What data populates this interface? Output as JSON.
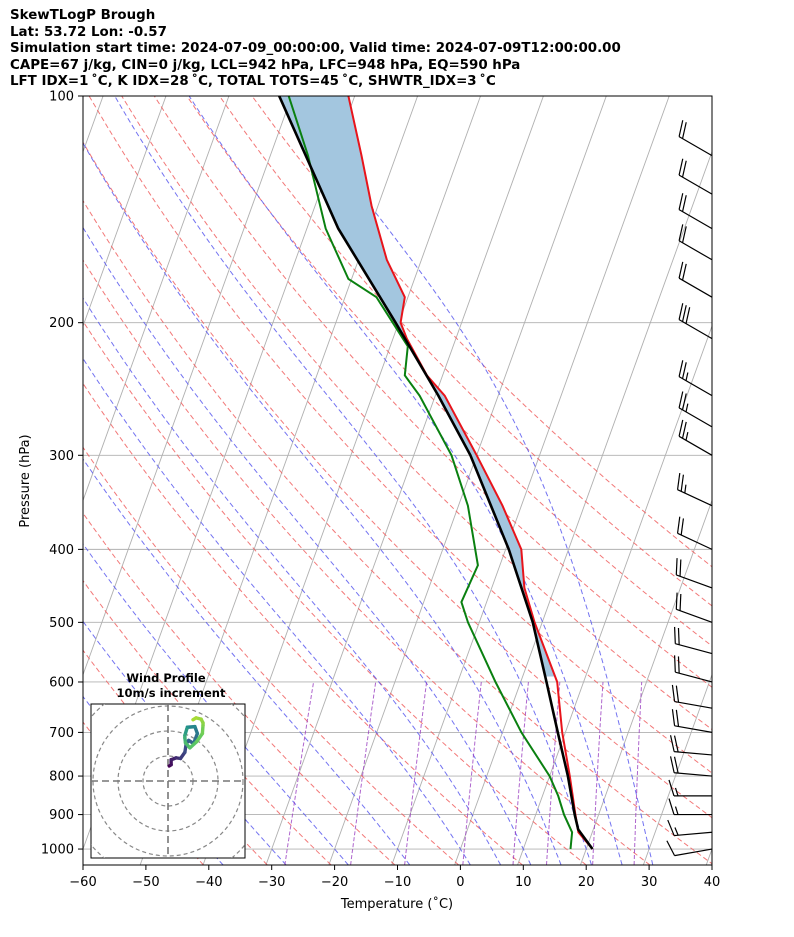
{
  "header": {
    "line1": "SkewTLogP Brough",
    "line2": "Lat: 53.72   Lon: -0.57",
    "line3": "Simulation start time: 2024-07-09_00:00:00, Valid time: 2024-07-09T12:00:00.00",
    "line4": "CAPE=67 j/kg, CIN=0 j/kg, LCL=942 hPa, LFC=948 hPa, EQ=590 hPa",
    "line5": "LFT IDX=1 ˚C, K IDX=28 ˚C, TOTAL TOTS=45 ˚C, SHWTR_IDX=3 ˚C"
  },
  "colors": {
    "temperature": "#e8141b",
    "dewpoint": "#0a8010",
    "parcel": "#000000",
    "cape_fill": "#a3c6df",
    "dry_adiabat": "#f06060",
    "moist_adiabat": "#5a5aee",
    "mixing_ratio": "#9a3fc0",
    "isotherm": "#b0b0b0"
  },
  "chart_data": [
    {
      "type": "line",
      "chart": "skew-t-log-p",
      "xlabel": "Temperature (˚C)",
      "ylabel": "Pressure (hPa)",
      "xlim": [
        -60,
        40
      ],
      "ylim": [
        1050,
        100
      ],
      "x_ticks": [
        -60,
        -50,
        -40,
        -30,
        -20,
        -10,
        0,
        10,
        20,
        30,
        40
      ],
      "x_tick_labels": [
        "−60",
        "−50",
        "−40",
        "−30",
        "−20",
        "−10",
        "0",
        "10",
        "20",
        "30",
        "40"
      ],
      "y_ticks": [
        1000,
        900,
        800,
        700,
        600,
        500,
        400,
        300,
        200,
        100
      ],
      "series": [
        {
          "name": "Temperature",
          "color": "#e8141b",
          "points": [
            [
              1000,
              21.0
            ],
            [
              950,
              17.8
            ],
            [
              900,
              16.3
            ],
            [
              850,
              14.8
            ],
            [
              800,
              13.2
            ],
            [
              700,
              9.5
            ],
            [
              600,
              5.8
            ],
            [
              500,
              -1.2
            ],
            [
              450,
              -4.8
            ],
            [
              400,
              -7.5
            ],
            [
              350,
              -13.0
            ],
            [
              300,
              -20.0
            ],
            [
              250,
              -28.5
            ],
            [
              235,
              -32.5
            ],
            [
              210,
              -37.8
            ],
            [
              200,
              -39.7
            ],
            [
              185,
              -40.5
            ],
            [
              165,
              -45.5
            ],
            [
              140,
              -51.0
            ],
            [
              120,
              -55.5
            ],
            [
              100,
              -61.0
            ]
          ]
        },
        {
          "name": "Dewpoint",
          "color": "#0a8010",
          "points": [
            [
              1000,
              17.5
            ],
            [
              950,
              16.8
            ],
            [
              900,
              14.5
            ],
            [
              850,
              12.5
            ],
            [
              800,
              10.0
            ],
            [
              700,
              3.0
            ],
            [
              600,
              -4.0
            ],
            [
              500,
              -11.8
            ],
            [
              470,
              -14.0
            ],
            [
              420,
              -13.5
            ],
            [
              350,
              -18.5
            ],
            [
              300,
              -24.0
            ],
            [
              250,
              -32.5
            ],
            [
              235,
              -36.0
            ],
            [
              215,
              -37.2
            ],
            [
              185,
              -45.0
            ],
            [
              175,
              -50.5
            ],
            [
              150,
              -57.0
            ],
            [
              120,
              -64.0
            ],
            [
              100,
              -70.5
            ]
          ]
        },
        {
          "name": "Parcel",
          "color": "#000000",
          "points": [
            [
              1000,
              21.0
            ],
            [
              942,
              17.6
            ],
            [
              900,
              16.2
            ],
            [
              800,
              12.9
            ],
            [
              700,
              8.8
            ],
            [
              600,
              4.1
            ],
            [
              500,
              -1.5
            ],
            [
              400,
              -9.5
            ],
            [
              300,
              -21.0
            ],
            [
              250,
              -29.5
            ],
            [
              200,
              -40.5
            ],
            [
              150,
              -55.0
            ],
            [
              100,
              -72.0
            ]
          ]
        }
      ],
      "cape_region": {
        "from_hPa": 590,
        "to_hPa": 100,
        "color": "#a3c6df"
      },
      "background_lines": {
        "dry_adiabats_theta_K": [
          230,
          240,
          250,
          260,
          270,
          280,
          290,
          300,
          310,
          320,
          330,
          340,
          350,
          360,
          370,
          380
        ],
        "moist_adiabats_start_C_at_1000": [
          -40,
          -30,
          -20,
          -10,
          0,
          5,
          10,
          15,
          20,
          25,
          30
        ],
        "mixing_ratio_g_per_kg": [
          0.4,
          1,
          2,
          4,
          7,
          10,
          16,
          24
        ]
      },
      "wind_barbs": [
        {
          "p": 1000,
          "speed_kt": 10,
          "dir": 260
        },
        {
          "p": 950,
          "speed_kt": 15,
          "dir": 265
        },
        {
          "p": 900,
          "speed_kt": 15,
          "dir": 270
        },
        {
          "p": 850,
          "speed_kt": 15,
          "dir": 270
        },
        {
          "p": 800,
          "speed_kt": 20,
          "dir": 275
        },
        {
          "p": 750,
          "speed_kt": 20,
          "dir": 275
        },
        {
          "p": 700,
          "speed_kt": 20,
          "dir": 280
        },
        {
          "p": 650,
          "speed_kt": 20,
          "dir": 280
        },
        {
          "p": 600,
          "speed_kt": 20,
          "dir": 285
        },
        {
          "p": 550,
          "speed_kt": 20,
          "dir": 285
        },
        {
          "p": 500,
          "speed_kt": 20,
          "dir": 290
        },
        {
          "p": 450,
          "speed_kt": 20,
          "dir": 290
        },
        {
          "p": 400,
          "speed_kt": 20,
          "dir": 295
        },
        {
          "p": 350,
          "speed_kt": 25,
          "dir": 295
        },
        {
          "p": 300,
          "speed_kt": 25,
          "dir": 300
        },
        {
          "p": 275,
          "speed_kt": 25,
          "dir": 300
        },
        {
          "p": 250,
          "speed_kt": 25,
          "dir": 300
        },
        {
          "p": 210,
          "speed_kt": 30,
          "dir": 300
        },
        {
          "p": 185,
          "speed_kt": 20,
          "dir": 300
        },
        {
          "p": 165,
          "speed_kt": 20,
          "dir": 300
        },
        {
          "p": 150,
          "speed_kt": 20,
          "dir": 300
        },
        {
          "p": 135,
          "speed_kt": 20,
          "dir": 300
        },
        {
          "p": 120,
          "speed_kt": 20,
          "dir": 300
        }
      ]
    },
    {
      "type": "scatter",
      "chart": "hodograph",
      "title": "Wind Profile",
      "subtitle": "10m/s increment",
      "ring_increment_ms": 10,
      "points_uv": [
        [
          0.2,
          2.4
        ],
        [
          0.5,
          2.6
        ],
        [
          0.5,
          3.4
        ],
        [
          1.3,
          3.7
        ],
        [
          2.0,
          3.6
        ],
        [
          2.7,
          4.6
        ],
        [
          2.9,
          5.9
        ],
        [
          3.3,
          6.5
        ],
        [
          4.1,
          6.0
        ],
        [
          4.7,
          7.6
        ],
        [
          4.3,
          8.7
        ],
        [
          3.1,
          8.6
        ],
        [
          3.0,
          8.3
        ],
        [
          2.7,
          7.3
        ],
        [
          2.7,
          6.9
        ],
        [
          2.8,
          6.1
        ],
        [
          3.5,
          5.3
        ],
        [
          4.6,
          6.3
        ],
        [
          5.5,
          7.6
        ],
        [
          5.6,
          8.9
        ],
        [
          5.6,
          9.3
        ],
        [
          5.3,
          9.9
        ],
        [
          4.5,
          10.1
        ],
        [
          4.0,
          9.8
        ]
      ]
    }
  ]
}
